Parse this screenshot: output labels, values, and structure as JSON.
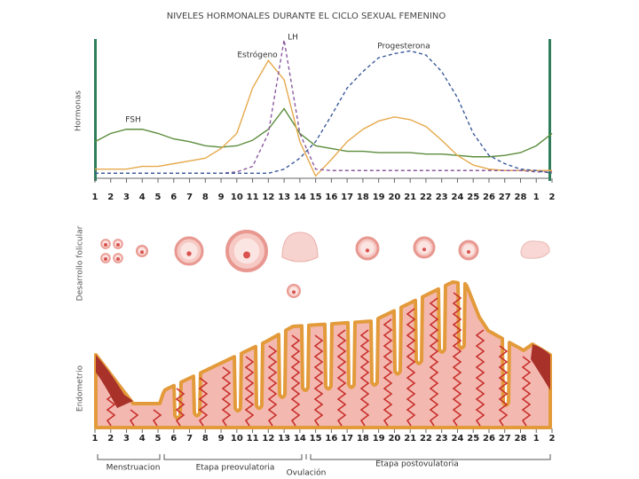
{
  "chart_data": {
    "type": "line",
    "title": "NIVELES HORMONALES DURANTE EL CICLO SEXUAL FEMENINO",
    "y_label": "Hormonas",
    "categories": [
      "1",
      "2",
      "3",
      "4",
      "5",
      "6",
      "7",
      "8",
      "9",
      "10",
      "11",
      "12",
      "13",
      "14",
      "15",
      "16",
      "17",
      "18",
      "19",
      "20",
      "21",
      "22",
      "23",
      "24",
      "25",
      "26",
      "27",
      "28",
      "1",
      "2"
    ],
    "ylim": [
      0,
      100
    ],
    "series": [
      {
        "name": "FSH",
        "color": "#5b8c3c",
        "style": "solid",
        "values": [
          26,
          32,
          35,
          35,
          32,
          28,
          26,
          23,
          22,
          23,
          27,
          35,
          50,
          32,
          23,
          21,
          19,
          19,
          18,
          18,
          18,
          17,
          17,
          16,
          15,
          15,
          16,
          18,
          23,
          32
        ]
      },
      {
        "name": "Estrógeno",
        "color": "#e6a94c",
        "style": "solid",
        "values": [
          6,
          6,
          6,
          8,
          8,
          10,
          12,
          14,
          21,
          32,
          65,
          85,
          71,
          26,
          1,
          13,
          26,
          35,
          41,
          44,
          42,
          37,
          27,
          16,
          9,
          6,
          5,
          5,
          5,
          5
        ]
      },
      {
        "name": "LH",
        "color": "#8a5a9e",
        "style": "dashed",
        "values": [
          3,
          3,
          3,
          3,
          3,
          3,
          3,
          3,
          3,
          4,
          8,
          32,
          100,
          32,
          6,
          5,
          5,
          5,
          5,
          5,
          5,
          5,
          5,
          5,
          5,
          5,
          5,
          5,
          4,
          4
        ]
      },
      {
        "name": "Progesterona",
        "color": "#3b5a9a",
        "style": "dashed",
        "values": [
          3,
          3,
          3,
          3,
          3,
          3,
          3,
          3,
          3,
          3,
          3,
          3,
          6,
          14,
          26,
          45,
          65,
          77,
          87,
          90,
          92,
          89,
          77,
          58,
          32,
          16,
          10,
          6,
          5,
          3
        ]
      }
    ]
  },
  "illustration": {
    "follicle_label": "Desarrollo folicular",
    "endometrium_label": "Endometrio",
    "phases": [
      "Menstruacion",
      "Etapa preovulatoria",
      "Ovulación",
      "Etapa postovulatoria"
    ]
  }
}
